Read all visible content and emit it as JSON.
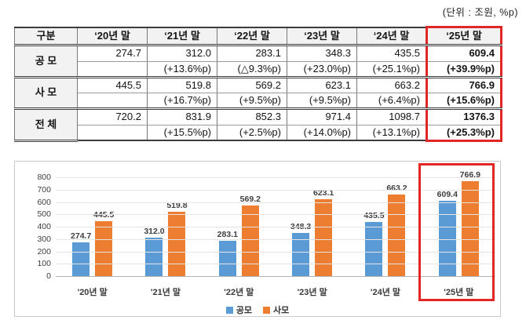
{
  "unit_label": "(단위 : 조원, %p)",
  "colors": {
    "accent_red": "#e12626",
    "bar_blue": "#5b9bd5",
    "bar_orange": "#ed7d31"
  },
  "table": {
    "header": [
      "구분",
      "‘20년 말",
      "‘21년 말",
      "‘22년 말",
      "‘23년 말",
      "‘24년 말",
      "‘25년 말"
    ],
    "rows": [
      {
        "category": "공 모",
        "values": [
          "274.7",
          "312.0",
          "283.1",
          "348.3",
          "435.5",
          "609.4"
        ],
        "changes": [
          "",
          "(+13.6%p)",
          "(△9.3%p)",
          "(+23.0%p)",
          "(+25.1%p)",
          "(+39.9%p)"
        ]
      },
      {
        "category": "사 모",
        "values": [
          "445.5",
          "519.8",
          "569.2",
          "623.1",
          "663.2",
          "766.9"
        ],
        "changes": [
          "",
          "(+16.7%p)",
          "(+9.5%p)",
          "(+9.5%p)",
          "(+6.4%p)",
          "(+15.6%p)"
        ]
      },
      {
        "category": "전 체",
        "values": [
          "720.2",
          "831.9",
          "852.3",
          "971.4",
          "1098.7",
          "1376.3"
        ],
        "changes": [
          "",
          "(+15.5%p)",
          "(+2.5%p)",
          "(+14.0%p)",
          "(+13.1%p)",
          "(+25.3%p)"
        ]
      }
    ]
  },
  "chart_data": {
    "type": "bar",
    "title": "",
    "categories": [
      "'20년 말",
      "'21년 말",
      "'22년 말",
      "'23년 말",
      "'24년 말",
      "'25년 말"
    ],
    "series": [
      {
        "name": "공모",
        "color": "#5b9bd5",
        "values": [
          274.7,
          312.0,
          283.1,
          348.3,
          435.5,
          609.4
        ]
      },
      {
        "name": "사모",
        "color": "#ed7d31",
        "values": [
          445.5,
          519.8,
          569.2,
          623.1,
          663.2,
          766.9
        ]
      }
    ],
    "xlabel": "",
    "ylabel": "",
    "ylim": [
      0,
      800
    ],
    "ytick_step": 100,
    "grid": true,
    "legend_position": "bottom",
    "data_labels": true,
    "highlight_category_index": 5,
    "highlight_color": "#e12626"
  }
}
